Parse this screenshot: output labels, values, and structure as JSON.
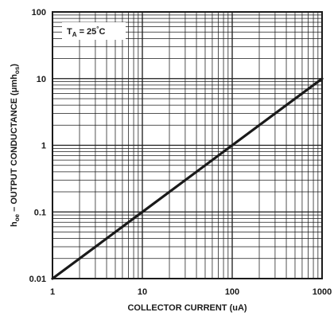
{
  "chart_data": {
    "type": "line",
    "title": "",
    "xlabel": "COLLECTOR CURRENT (uA)",
    "ylabel_main": "h",
    "ylabel_sub": "oe",
    "ylabel_rest": " – OUTPUT CONDUCTANCE (μmh",
    "ylabel_sub2": "os",
    "ylabel_end": ")",
    "x_scale": "log",
    "y_scale": "log",
    "xlim": [
      1,
      1000
    ],
    "ylim": [
      0.01,
      100
    ],
    "x_ticks": [
      1,
      10,
      100,
      1000
    ],
    "x_tick_labels": [
      "1",
      "10",
      "100",
      "1000"
    ],
    "y_ticks": [
      0.01,
      0.1,
      1,
      10,
      100
    ],
    "y_tick_labels": [
      "0.01",
      "0.1",
      "1",
      "10",
      "100"
    ],
    "grid": true,
    "annotation": {
      "t": "T",
      "sub": "A",
      "rest": " = 25",
      "deg": "°",
      "unit": "C"
    },
    "series": [
      {
        "x": [
          1,
          10,
          100,
          1000
        ],
        "y": [
          0.01,
          0.1,
          1,
          10
        ],
        "color": "#1a1a1a"
      }
    ]
  }
}
